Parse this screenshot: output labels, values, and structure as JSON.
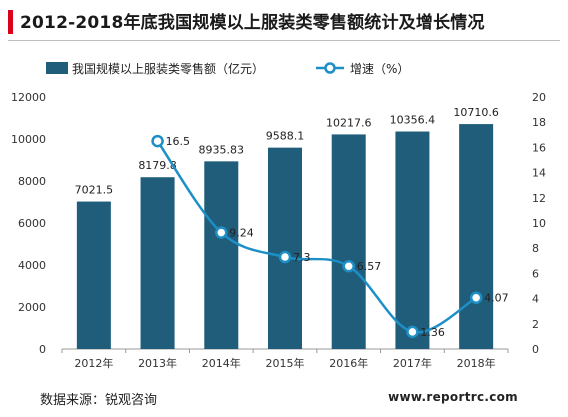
{
  "header": {
    "title": "2012-2018年底我国规模以上服装类零售额统计及增长情况"
  },
  "footer": {
    "source": "数据来源：锐观咨询",
    "website": "www.reportrc.com"
  },
  "colors": {
    "bar": "#1f5d7a",
    "line": "#1e8fc6",
    "marker_fill": "#ffffff",
    "accent": "#d9001b"
  },
  "chart_data": {
    "type": "bar+line",
    "categories": [
      "2012年",
      "2013年",
      "2014年",
      "2015年",
      "2016年",
      "2017年",
      "2018年"
    ],
    "series": [
      {
        "name": "我国规模以上服装类零售额（亿元）",
        "type": "bar",
        "axis": "left",
        "values": [
          7021.5,
          8179.8,
          8935.83,
          9588.1,
          10217.6,
          10356.4,
          10710.6
        ],
        "labels": [
          "7021.5",
          "8179.8",
          "8935.83",
          "9588.1",
          "10217.6",
          "10356.4",
          "10710.6"
        ]
      },
      {
        "name": "增速（%）",
        "type": "line",
        "axis": "right",
        "values": [
          null,
          16.5,
          9.24,
          7.3,
          6.57,
          1.36,
          4.07
        ],
        "labels": [
          "",
          "16.5",
          "9.24",
          "7.3",
          "6.57",
          "1.36",
          "4.07"
        ]
      }
    ],
    "y_left": {
      "min": 0,
      "max": 12000,
      "ticks": [
        "0",
        "2000",
        "4000",
        "6000",
        "8000",
        "10000",
        "12000"
      ]
    },
    "y_right": {
      "min": 0,
      "max": 20,
      "ticks": [
        "0",
        "2",
        "4",
        "6",
        "8",
        "10",
        "12",
        "14",
        "16",
        "18",
        "20"
      ]
    },
    "grid": false,
    "legend": "top"
  }
}
